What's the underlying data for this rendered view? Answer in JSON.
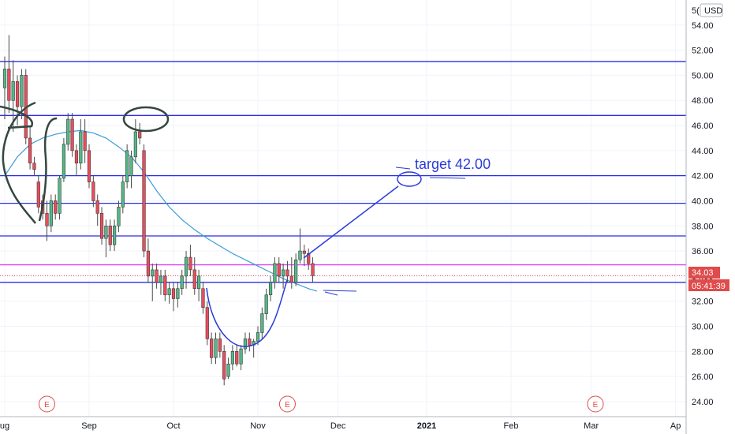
{
  "chart_data": {
    "type": "candlestick",
    "currency": "USD",
    "y_ticks": [
      "24.00",
      "26.00",
      "28.00",
      "30.00",
      "32.00",
      "34.00",
      "36.00",
      "38.00",
      "40.00",
      "42.00",
      "44.00",
      "46.00",
      "48.00",
      "50.00",
      "52.00",
      "54.00"
    ],
    "y_top_partial": "5(",
    "x_ticks": [
      {
        "label": "ug",
        "index": 0
      },
      {
        "label": "Sep",
        "index": 20
      },
      {
        "label": "Oct",
        "index": 40
      },
      {
        "label": "Nov",
        "index": 60
      },
      {
        "label": "Dec",
        "index": 79
      },
      {
        "label": "2021",
        "index": 100,
        "bold": true
      },
      {
        "label": "Feb",
        "index": 120
      },
      {
        "label": "Mar",
        "index": 139
      },
      {
        "label": "Ap",
        "index": 159
      }
    ],
    "last_price": "34.03",
    "countdown": "05:41:39",
    "earnings_markers": {
      "label": "E",
      "indices": [
        10,
        67,
        140
      ]
    },
    "annotation_text": "target 42.00",
    "horizontal_lines": {
      "blue": [
        51.1,
        46.8,
        42.0,
        39.8,
        37.2,
        33.5
      ],
      "magenta": [
        34.9
      ],
      "red_dotted": [
        34.03
      ]
    },
    "ylim": [
      22.8,
      56.0
    ],
    "candles": [
      [
        49.0,
        51.5,
        46.5,
        50.5
      ],
      [
        50.5,
        53.2,
        47.0,
        48.0
      ],
      [
        48.0,
        51.2,
        45.5,
        49.5
      ],
      [
        49.5,
        50.0,
        46.0,
        47.5
      ],
      [
        47.5,
        50.5,
        46.5,
        50.0
      ],
      [
        50.0,
        50.5,
        44.5,
        45.0
      ],
      [
        45.0,
        46.0,
        42.5,
        43.0
      ],
      [
        43.0,
        43.5,
        42.0,
        42.5
      ],
      [
        41.5,
        42.0,
        39.0,
        39.5
      ],
      [
        40.0,
        40.5,
        38.5,
        39.0
      ],
      [
        39.0,
        40.0,
        36.8,
        38.0
      ],
      [
        38.0,
        40.5,
        37.5,
        40.0
      ],
      [
        40.0,
        40.5,
        38.5,
        39.0
      ],
      [
        39.0,
        42.0,
        38.5,
        41.8
      ],
      [
        41.8,
        45.0,
        41.5,
        44.5
      ],
      [
        44.5,
        47.0,
        44.0,
        46.5
      ],
      [
        46.5,
        47.0,
        43.5,
        44.0
      ],
      [
        44.0,
        44.5,
        42.0,
        43.0
      ],
      [
        43.0,
        46.5,
        42.5,
        45.5
      ],
      [
        45.5,
        46.5,
        43.0,
        44.0
      ],
      [
        44.0,
        44.5,
        41.0,
        41.5
      ],
      [
        41.5,
        42.0,
        39.5,
        40.0
      ],
      [
        40.0,
        40.5,
        38.0,
        39.0
      ],
      [
        39.0,
        39.5,
        36.5,
        37.0
      ],
      [
        37.0,
        38.5,
        35.5,
        38.0
      ],
      [
        38.0,
        38.5,
        36.0,
        36.5
      ],
      [
        36.5,
        38.5,
        36.0,
        38.0
      ],
      [
        38.0,
        40.0,
        37.5,
        39.5
      ],
      [
        39.5,
        42.0,
        39.0,
        41.5
      ],
      [
        41.5,
        44.5,
        41.0,
        44.0
      ],
      [
        42.0,
        44.0,
        41.0,
        43.5
      ],
      [
        43.5,
        46.5,
        43.0,
        45.5
      ],
      [
        45.5,
        46.2,
        44.5,
        45.0
      ],
      [
        44.0,
        44.5,
        35.5,
        36.0
      ],
      [
        36.0,
        37.0,
        33.5,
        34.0
      ],
      [
        34.0,
        35.0,
        32.0,
        34.5
      ],
      [
        34.5,
        35.0,
        33.0,
        33.5
      ],
      [
        33.5,
        34.5,
        32.5,
        34.0
      ],
      [
        34.0,
        34.5,
        32.0,
        32.5
      ],
      [
        32.5,
        33.5,
        31.8,
        33.0
      ],
      [
        33.0,
        33.5,
        31.2,
        32.2
      ],
      [
        32.2,
        33.5,
        31.5,
        33.0
      ],
      [
        33.0,
        34.5,
        32.5,
        34.0
      ],
      [
        34.0,
        36.0,
        33.0,
        35.5
      ],
      [
        35.5,
        36.5,
        34.0,
        34.5
      ],
      [
        34.5,
        35.5,
        32.5,
        33.0
      ],
      [
        33.0,
        34.5,
        32.0,
        34.0
      ],
      [
        33.0,
        33.5,
        31.0,
        31.5
      ],
      [
        31.5,
        32.0,
        28.5,
        29.0
      ],
      [
        29.0,
        29.5,
        27.0,
        27.5
      ],
      [
        27.5,
        29.5,
        27.0,
        29.0
      ],
      [
        29.0,
        29.5,
        27.5,
        28.0
      ],
      [
        28.0,
        28.5,
        25.3,
        25.8
      ],
      [
        26.0,
        27.5,
        25.8,
        27.0
      ],
      [
        27.0,
        28.5,
        26.5,
        28.0
      ],
      [
        28.0,
        28.5,
        26.8,
        27.0
      ],
      [
        27.0,
        28.5,
        26.5,
        28.2
      ],
      [
        28.2,
        29.5,
        27.8,
        29.0
      ],
      [
        29.0,
        29.5,
        28.0,
        28.5
      ],
      [
        28.5,
        29.0,
        27.5,
        28.8
      ],
      [
        28.8,
        30.0,
        28.5,
        29.5
      ],
      [
        29.5,
        31.5,
        29.0,
        31.0
      ],
      [
        31.0,
        33.0,
        30.5,
        32.5
      ],
      [
        32.5,
        34.0,
        32.0,
        33.5
      ],
      [
        33.5,
        35.5,
        33.0,
        35.0
      ],
      [
        35.0,
        35.5,
        33.5,
        34.0
      ],
      [
        34.0,
        35.0,
        33.0,
        34.5
      ],
      [
        34.5,
        35.2,
        33.5,
        34.0
      ],
      [
        34.0,
        35.5,
        33.0,
        33.5
      ],
      [
        33.5,
        35.8,
        33.2,
        35.3
      ],
      [
        35.3,
        37.8,
        35.0,
        36.0
      ],
      [
        36.0,
        36.5,
        34.8,
        35.8
      ],
      [
        35.8,
        36.2,
        34.5,
        35.0
      ],
      [
        35.0,
        35.5,
        33.5,
        34.03
      ]
    ],
    "moving_average": [
      [
        0,
        42.0
      ],
      [
        3,
        43.5
      ],
      [
        6,
        44.5
      ],
      [
        9,
        45.0
      ],
      [
        12,
        45.3
      ],
      [
        15,
        45.5
      ],
      [
        18,
        45.6
      ],
      [
        21,
        45.4
      ],
      [
        24,
        45.0
      ],
      [
        27,
        44.3
      ],
      [
        30,
        43.5
      ],
      [
        33,
        42.3
      ],
      [
        36,
        40.8
      ],
      [
        39,
        39.5
      ],
      [
        42,
        38.5
      ],
      [
        45,
        37.7
      ],
      [
        48,
        37.0
      ],
      [
        51,
        36.4
      ],
      [
        54,
        35.8
      ],
      [
        57,
        35.3
      ],
      [
        60,
        34.8
      ],
      [
        63,
        34.3
      ],
      [
        66,
        33.8
      ],
      [
        69,
        33.4
      ],
      [
        72,
        33.0
      ],
      [
        74,
        32.8
      ]
    ]
  }
}
